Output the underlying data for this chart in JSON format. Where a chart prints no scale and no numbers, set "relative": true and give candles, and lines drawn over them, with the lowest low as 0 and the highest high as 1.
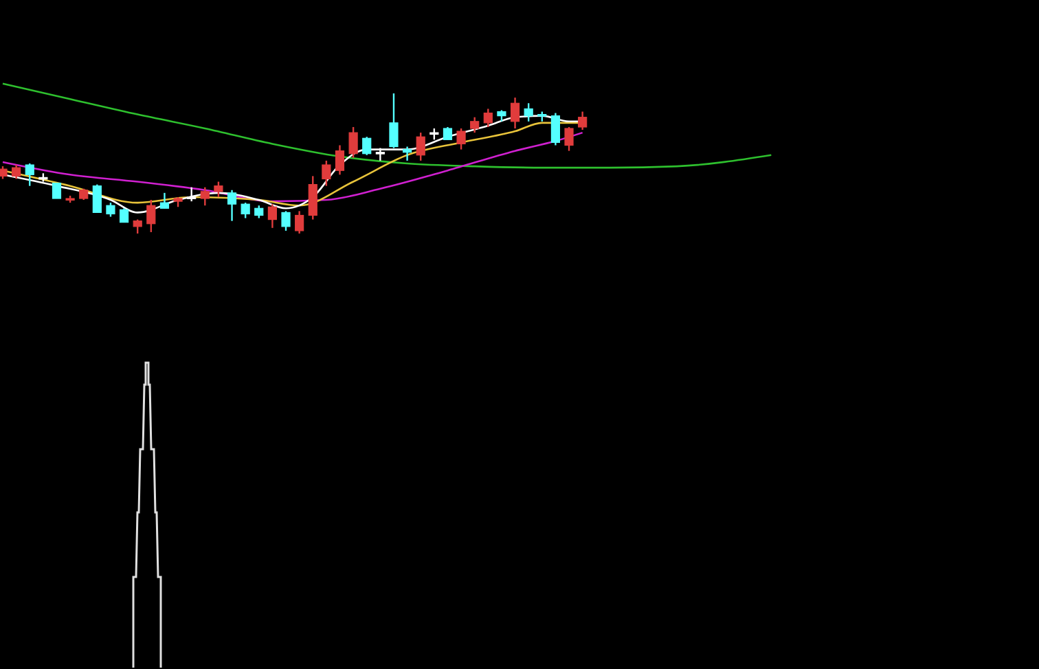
{
  "chart_data": {
    "type": "candlestick",
    "relative": true,
    "categories": [
      null,
      null,
      null,
      null,
      null,
      null,
      null,
      null,
      null,
      null,
      null,
      null,
      null,
      null,
      null,
      null,
      null,
      null,
      null,
      null,
      null,
      null,
      null,
      null,
      null,
      null,
      null,
      null,
      null,
      null,
      null,
      null,
      null,
      null,
      null,
      null,
      null,
      null,
      null,
      null,
      null,
      null,
      null,
      null,
      null,
      null,
      null,
      null,
      null,
      null,
      null,
      null,
      null,
      null,
      null,
      null,
      null,
      null
    ],
    "ohlc": [
      [
        0.41,
        0.48,
        0.39,
        0.46
      ],
      [
        0.41,
        0.49,
        0.39,
        0.47
      ],
      [
        0.49,
        0.5,
        0.34,
        0.42
      ],
      [
        0.4,
        0.43,
        0.37,
        0.4
      ],
      [
        0.36,
        0.36,
        0.25,
        0.25
      ],
      [
        0.24,
        0.27,
        0.22,
        0.25
      ],
      [
        0.25,
        0.32,
        0.24,
        0.31
      ],
      [
        0.34,
        0.35,
        0.15,
        0.15
      ],
      [
        0.2,
        0.22,
        0.12,
        0.14
      ],
      [
        0.17,
        0.18,
        0.08,
        0.08
      ],
      [
        0.05,
        0.1,
        0,
        0.09
      ],
      [
        0.07,
        0.24,
        0.01,
        0.2
      ],
      [
        0.22,
        0.29,
        0.18,
        0.18
      ],
      [
        0.23,
        0.26,
        0.19,
        0.25
      ],
      [
        0.26,
        0.33,
        0.23,
        0.26
      ],
      [
        0.25,
        0.33,
        0.2,
        0.3
      ],
      [
        0.3,
        0.37,
        0.26,
        0.34
      ],
      [
        0.29,
        0.31,
        0.09,
        0.21
      ],
      [
        0.21,
        0.22,
        0.11,
        0.14
      ],
      [
        0.18,
        0.2,
        0.11,
        0.13
      ],
      [
        0.1,
        0.21,
        0.04,
        0.19
      ],
      [
        0.15,
        0.16,
        0.02,
        0.05
      ],
      [
        0.02,
        0.16,
        0,
        0.13
      ],
      [
        0.13,
        0.41,
        0.1,
        0.35
      ],
      [
        0.39,
        0.52,
        0.34,
        0.49
      ],
      [
        0.45,
        0.63,
        0.42,
        0.59
      ],
      [
        0.57,
        0.76,
        0.54,
        0.72
      ],
      [
        0.68,
        0.69,
        0.56,
        0.57
      ],
      [
        0.58,
        0.61,
        0.52,
        0.58
      ],
      [
        0.79,
        1,
        0.61,
        0.62
      ],
      [
        0.6,
        0.62,
        0.52,
        0.58
      ],
      [
        0.56,
        0.72,
        0.52,
        0.69
      ],
      [
        0.72,
        0.75,
        0.67,
        0.72
      ],
      [
        0.75,
        0.76,
        0.67,
        0.67
      ],
      [
        0.64,
        0.75,
        0.6,
        0.73
      ],
      [
        0.75,
        0.83,
        0.72,
        0.8
      ],
      [
        0.79,
        0.89,
        0.76,
        0.86
      ],
      [
        0.87,
        0.88,
        0.8,
        0.84
      ],
      [
        0.8,
        0.97,
        0.75,
        0.93
      ],
      [
        0.89,
        0.93,
        0.8,
        0.84
      ],
      [
        0.85,
        0.87,
        0.8,
        0.84
      ],
      [
        0.84,
        0.86,
        0.63,
        0.65
      ],
      [
        0.63,
        0.76,
        0.59,
        0.75
      ],
      [
        0.76,
        0.87,
        0.74,
        0.83
      ],
      null,
      null,
      null,
      null,
      null,
      null,
      null,
      null,
      null,
      null,
      null,
      null,
      null,
      null
    ],
    "colors": [
      "#e03c3c",
      "#e03c3c",
      "#54ffff",
      "#ffffff",
      "#54ffff",
      "#e03c3c",
      "#e03c3c",
      "#54ffff",
      "#54ffff",
      "#54ffff",
      "#e03c3c",
      "#e03c3c",
      "#54ffff",
      "#e03c3c",
      "#ffffff",
      "#e03c3c",
      "#e03c3c",
      "#54ffff",
      "#54ffff",
      "#54ffff",
      "#e03c3c",
      "#54ffff",
      "#e03c3c",
      "#e03c3c",
      "#e03c3c",
      "#e03c3c",
      "#e03c3c",
      "#54ffff",
      "#ffffff",
      "#54ffff",
      "#54ffff",
      "#e03c3c",
      "#ffffff",
      "#54ffff",
      "#e03c3c",
      "#e03c3c",
      "#e03c3c",
      "#54ffff",
      "#e03c3c",
      "#54ffff",
      "#54ffff",
      "#54ffff",
      "#e03c3c",
      "#e03c3c",
      null,
      null,
      null,
      null,
      null,
      null,
      null,
      null,
      null,
      null,
      null,
      null,
      null,
      null
    ],
    "series": [
      {
        "type": "line",
        "color": "#2ec02e",
        "values": [
          1.07,
          null,
          null,
          null,
          null,
          0.96,
          null,
          null,
          null,
          null,
          0.85,
          null,
          null,
          null,
          null,
          0.75,
          null,
          null,
          null,
          null,
          0.64,
          null,
          null,
          null,
          null,
          0.55,
          null,
          null,
          null,
          null,
          0.5,
          null,
          null,
          null,
          null,
          0.48,
          null,
          null,
          null,
          null,
          0.47,
          null,
          null,
          null,
          null,
          0.47,
          null,
          null,
          null,
          null,
          0.48,
          null,
          null,
          null,
          null,
          null,
          null,
          0.56
        ]
      },
      {
        "type": "line",
        "color": "#d020d0",
        "values": [
          0.51,
          null,
          null,
          null,
          null,
          0.42,
          null,
          null,
          null,
          null,
          0.37,
          null,
          null,
          null,
          null,
          0.31,
          null,
          null,
          null,
          null,
          0.23,
          null,
          null,
          null,
          0.24,
          null,
          null,
          null,
          0.32,
          null,
          null,
          null,
          null,
          0.45,
          null,
          null,
          null,
          null,
          0.59,
          null,
          null,
          0.66,
          null,
          0.72,
          null,
          null,
          null,
          null,
          null,
          null,
          null,
          null,
          null,
          null,
          null,
          null,
          null,
          null
        ]
      },
      {
        "type": "line",
        "color": "#e8c33a",
        "values": [
          0.45,
          null,
          null,
          null,
          null,
          0.34,
          null,
          null,
          null,
          null,
          0.22,
          null,
          null,
          null,
          0.26,
          null,
          null,
          null,
          null,
          0.24,
          null,
          null,
          0.2,
          null,
          null,
          null,
          0.37,
          null,
          null,
          null,
          0.56,
          null,
          null,
          null,
          0.65,
          null,
          null,
          null,
          0.73,
          null,
          0.79,
          null,
          null,
          0.79,
          null,
          null,
          null,
          null,
          null,
          null,
          null,
          null,
          null,
          null,
          null,
          null,
          null,
          null
        ]
      },
      {
        "type": "line",
        "color": "#ffffff",
        "values": [
          0.42,
          null,
          null,
          null,
          0.34,
          null,
          null,
          null,
          0.24,
          null,
          0.15,
          null,
          null,
          0.24,
          null,
          null,
          0.29,
          null,
          null,
          0.24,
          null,
          0.18,
          null,
          0.26,
          null,
          0.49,
          null,
          0.6,
          null,
          null,
          0.6,
          null,
          null,
          0.69,
          null,
          null,
          0.77,
          null,
          0.83,
          null,
          0.84,
          null,
          0.8,
          0.8,
          null,
          null,
          null,
          null,
          null,
          null,
          null,
          null,
          null,
          null,
          null,
          null,
          null,
          null
        ]
      }
    ]
  }
}
